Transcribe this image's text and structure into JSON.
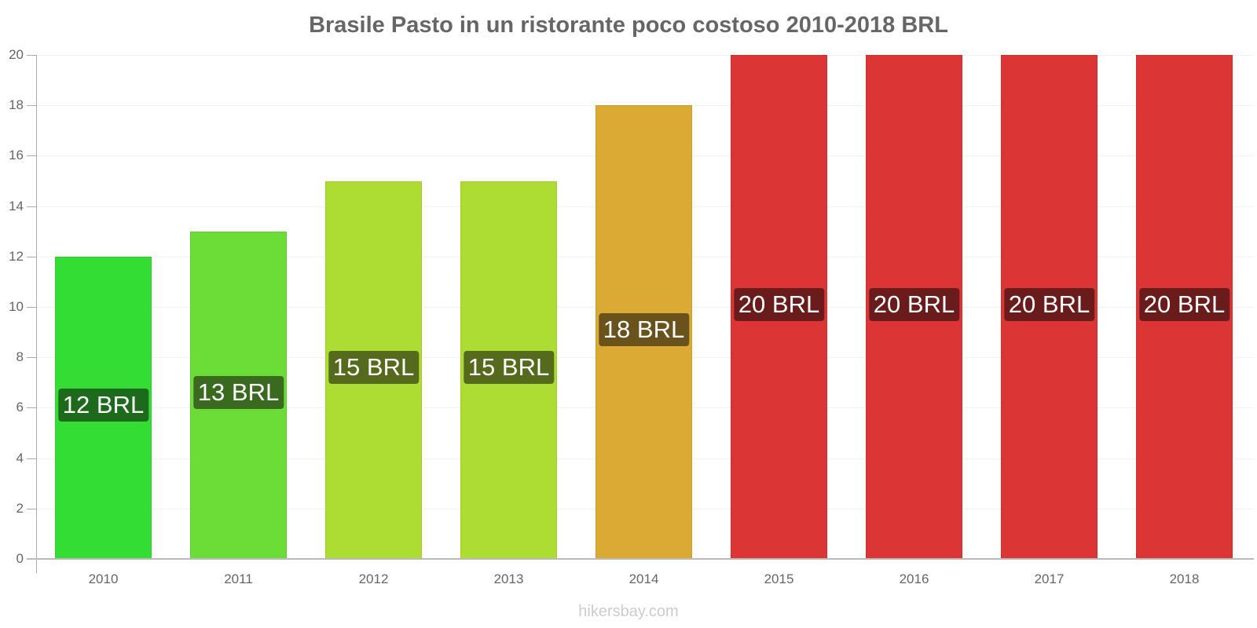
{
  "chart_data": {
    "type": "bar",
    "title": "Brasile Pasto in un ristorante poco costoso 2010-2018 BRL",
    "xlabel": "",
    "ylabel": "",
    "categories": [
      "2010",
      "2011",
      "2012",
      "2013",
      "2014",
      "2015",
      "2016",
      "2017",
      "2018"
    ],
    "values": [
      12,
      13,
      15,
      15,
      18,
      20,
      20,
      20,
      20
    ],
    "unit": "BRL",
    "data_labels": [
      "12 BRL",
      "13 BRL",
      "15 BRL",
      "15 BRL",
      "18 BRL",
      "20 BRL",
      "20 BRL",
      "20 BRL",
      "20 BRL"
    ],
    "ylim": [
      0,
      20
    ],
    "yticks": [
      "0",
      "2",
      "4",
      "6",
      "8",
      "10",
      "12",
      "14",
      "16",
      "18",
      "20"
    ],
    "grid": true,
    "legend": "none",
    "bar_colors": [
      "#33dd33",
      "#6cdd37",
      "#addd33",
      "#addd33",
      "#dbaa35",
      "#db3535",
      "#db3535",
      "#db3535",
      "#db3535"
    ],
    "label_bg_colors": [
      "#1d6a1d",
      "#3a6a1f",
      "#566a1d",
      "#566a1d",
      "#6a521d",
      "#6a1b1b",
      "#6a1b1b",
      "#6a1b1b",
      "#6a1b1b"
    ]
  },
  "footer": {
    "watermark": "hikersbay.com"
  }
}
